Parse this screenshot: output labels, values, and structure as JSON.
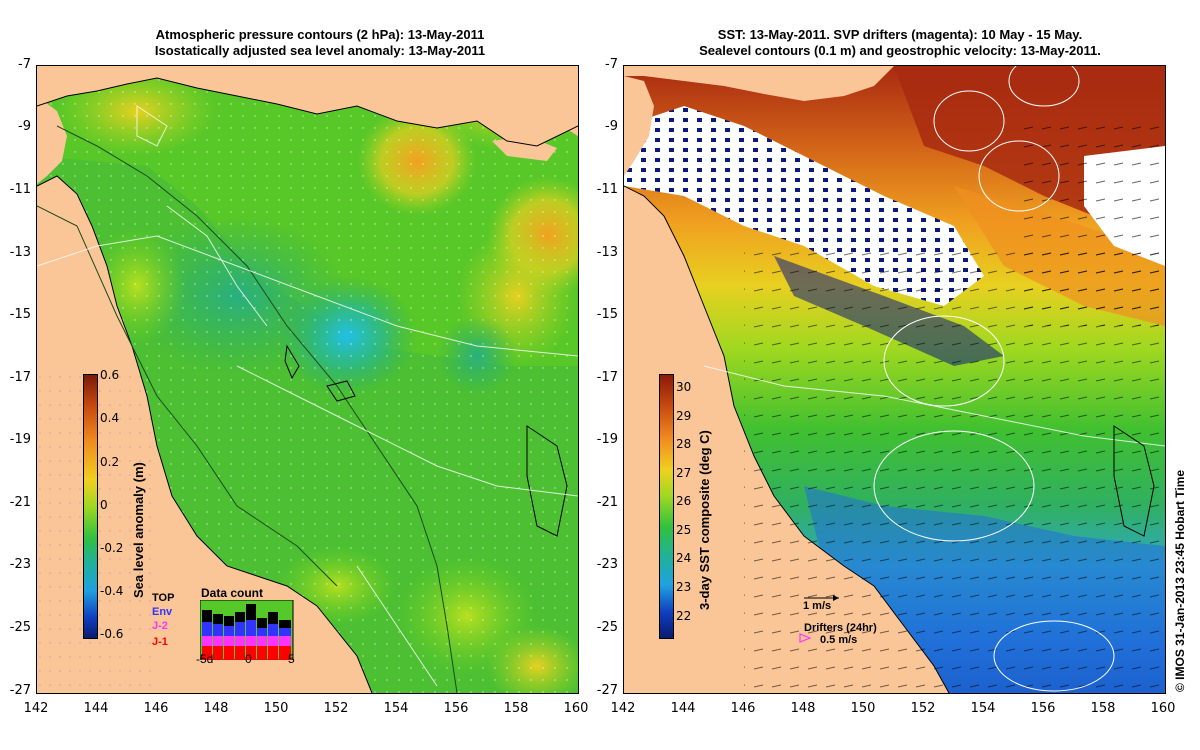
{
  "left_map": {
    "title_line1": "Atmospheric pressure contours (2 hPa): 13-May-2011",
    "title_line2": "Isostatically adjusted sea level anomaly: 13-May-2011",
    "colorbar_label": "Sea level anomaly (m)",
    "colorbar_ticks": [
      "0.6",
      "0.4",
      "0.2",
      "0",
      "-0.2",
      "-0.4",
      "-0.6"
    ],
    "inset": {
      "title": "Data count",
      "legend": [
        "TOP",
        "Env",
        "J-2",
        "J-1"
      ],
      "legend_colors": [
        "#000000",
        "#3333ff",
        "#ff33ff",
        "#ff0000"
      ],
      "xticks": [
        "-5d",
        "0",
        "5"
      ]
    }
  },
  "right_map": {
    "title_line1": "SST: 13-May-2011. SVP drifters (magenta): 10 May - 15 May.",
    "title_line2": "Sealevel contours (0.1 m) and geostrophic velocity: 13-May-2011.",
    "colorbar_label": "3-day SST composite (deg C)",
    "colorbar_ticks": [
      "30",
      "29",
      "28",
      "27",
      "26",
      "25",
      "24",
      "23",
      "22"
    ],
    "scale_label": "1 m/s",
    "drifters_label": "Drifters (24hr)",
    "drifters_speed": "0.5 m/s"
  },
  "axes": {
    "x_ticks": [
      "142",
      "144",
      "146",
      "148",
      "150",
      "152",
      "154",
      "156",
      "158",
      "160"
    ],
    "y_ticks": [
      "-7",
      "-9",
      "-11",
      "-13",
      "-15",
      "-17",
      "-19",
      "-21",
      "-23",
      "-25",
      "-27"
    ]
  },
  "credit": "© IMOS 31-Jan-2013 23:45 Hobart Time",
  "colors": {
    "land": "#fbc697",
    "sla_base": "#3fbf22",
    "sst_warm": "#b03010"
  }
}
